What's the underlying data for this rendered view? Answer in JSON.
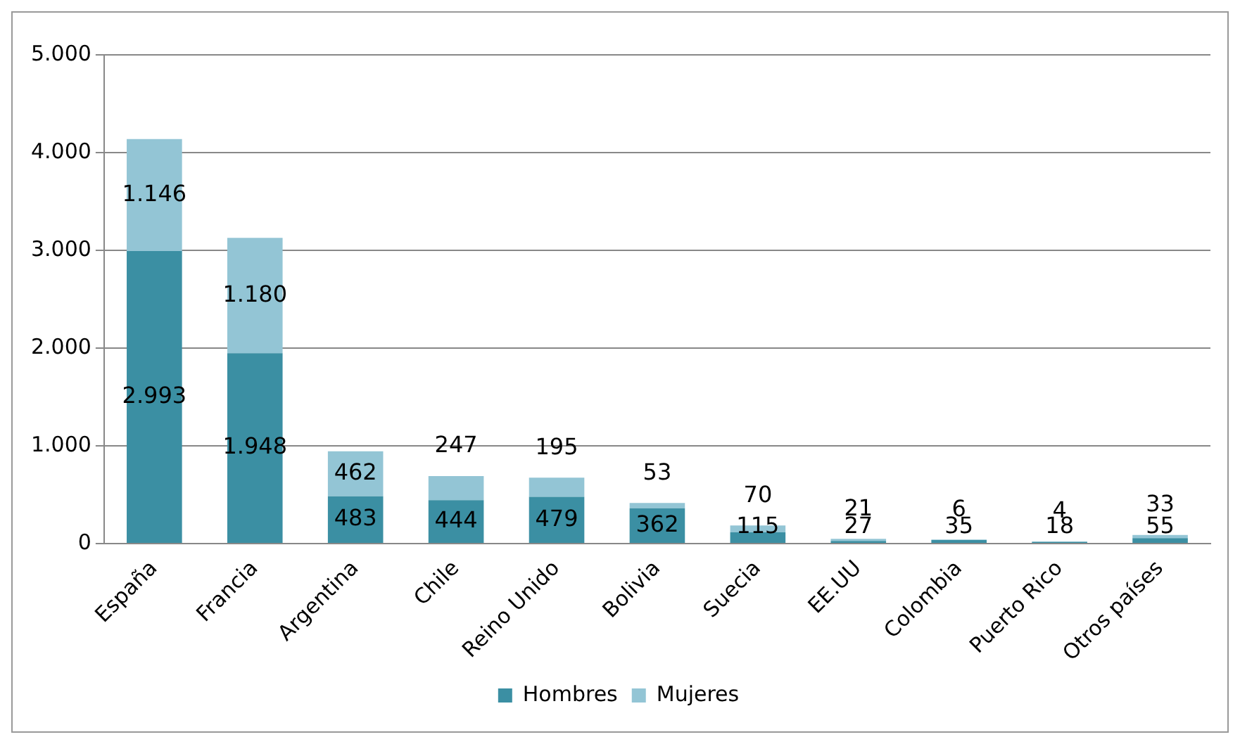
{
  "chart_data": {
    "type": "bar",
    "stacked": true,
    "categories": [
      "España",
      "Francia",
      "Argentina",
      "Chile",
      "Reino Unido",
      "Bolivia",
      "Suecia",
      "EE.UU",
      "Colombia",
      "Puerto Rico",
      "Otros países"
    ],
    "series": [
      {
        "name": "Hombres",
        "color": "#3b8fa3",
        "values": [
          2993,
          1948,
          483,
          444,
          479,
          362,
          115,
          27,
          35,
          18,
          55
        ],
        "value_labels": [
          "2.993",
          "1.948",
          "483",
          "444",
          "479",
          "362",
          "115",
          "27",
          "35",
          "18",
          "55"
        ]
      },
      {
        "name": "Mujeres",
        "color": "#93c5d5",
        "values": [
          1146,
          1180,
          462,
          247,
          195,
          53,
          70,
          21,
          6,
          4,
          33
        ],
        "value_labels": [
          "1.146",
          "1.180",
          "462",
          "247",
          "195",
          "53",
          "70",
          "21",
          "6",
          "4",
          "33"
        ]
      }
    ],
    "ylim": [
      0,
      5000
    ],
    "yticks": [
      {
        "value": 0,
        "label": "0"
      },
      {
        "value": 1000,
        "label": "1.000"
      },
      {
        "value": 2000,
        "label": "2.000"
      },
      {
        "value": 3000,
        "label": "3.000"
      },
      {
        "value": 4000,
        "label": "4.000"
      },
      {
        "value": 5000,
        "label": "5.000"
      }
    ],
    "grid": "y",
    "legend": "bottom"
  }
}
